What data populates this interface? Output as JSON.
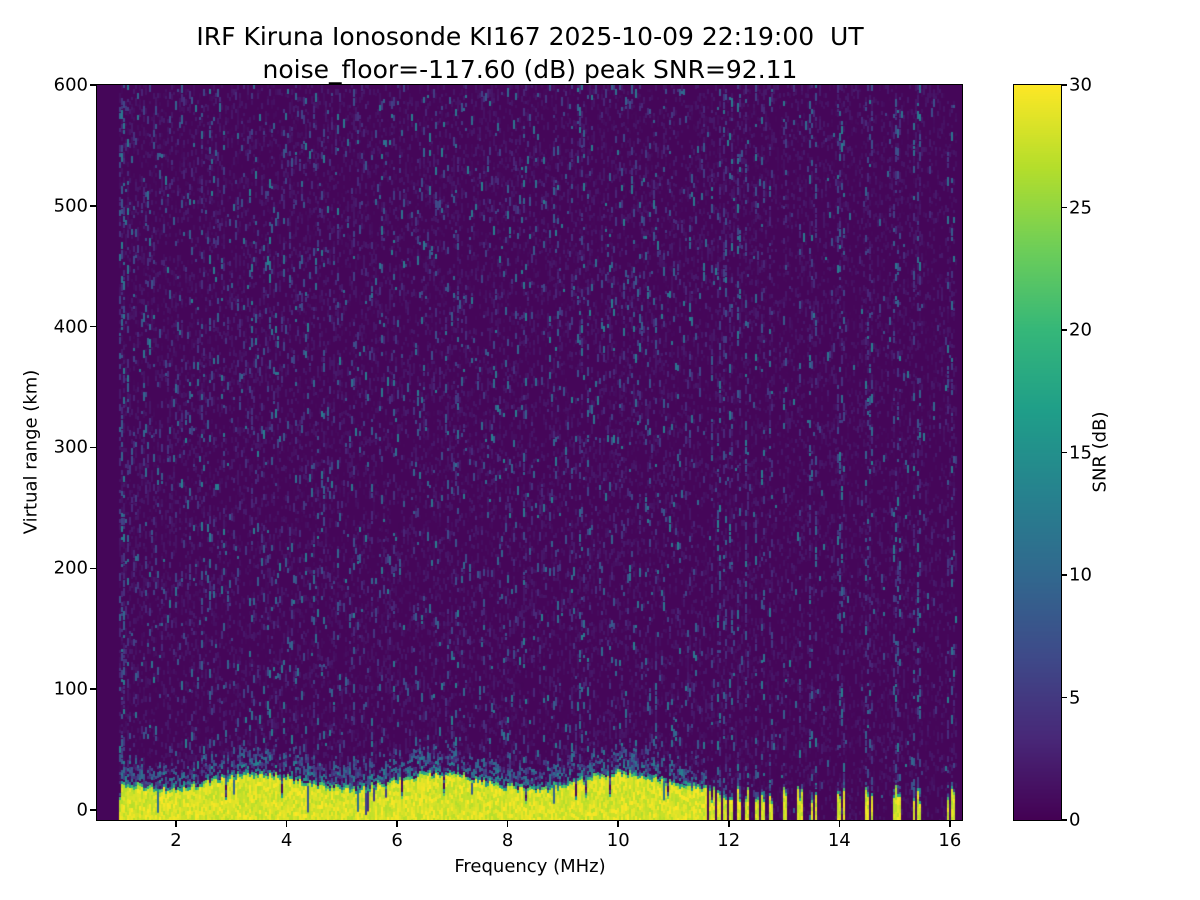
{
  "figure": {
    "background": "#ffffff"
  },
  "chart_data": {
    "type": "heatmap",
    "title": "IRF Kiruna Ionosonde KI167 2025-10-09 22:19:00  UT",
    "subtitle": "noise_floor=-117.60 (dB) peak SNR=92.11",
    "xlabel": "Frequency (MHz)",
    "ylabel": "Virtual range (km)",
    "colorbar_label": "SNR (dB)",
    "xlim": [
      0.57,
      16.22
    ],
    "ylim": [
      -8.3,
      600
    ],
    "clim": [
      0,
      30
    ],
    "xticks": [
      2,
      4,
      6,
      8,
      10,
      12,
      14,
      16
    ],
    "yticks": [
      0,
      100,
      200,
      300,
      400,
      500,
      600
    ],
    "colorbar_ticks": [
      0,
      5,
      10,
      15,
      20,
      25,
      30
    ],
    "colormap": "viridis",
    "viridis_stops": [
      "#440154",
      "#482878",
      "#3e4a89",
      "#31688e",
      "#26828e",
      "#1f9e89",
      "#35b779",
      "#6ece58",
      "#b5de2b",
      "#fde725"
    ],
    "noise_seed": 1337,
    "features": {
      "noise_floor_db": -117.6,
      "peak_snr_db": 92.11,
      "background": "dark viridis floor (~0-2 dB) with sparse blue-teal noise speckles (3-13 dB), denser in 1-11.6 MHz, concentrated in vertical RFI stripes above 11.6 MHz",
      "ground_echo_band": {
        "freq_start_mhz": 0.98,
        "freq_end_mhz": 11.62,
        "top_km_min": 16,
        "top_km_max": 30,
        "snr_db": 30
      },
      "echo_segments_mhz": [
        [
          11.66,
          11.74
        ],
        [
          11.78,
          11.85
        ],
        [
          11.9,
          11.97
        ],
        [
          12.02,
          12.09
        ],
        [
          12.16,
          12.23
        ],
        [
          12.3,
          12.38
        ],
        [
          12.46,
          12.53
        ],
        [
          12.6,
          12.67
        ],
        [
          12.74,
          12.81
        ],
        [
          12.97,
          13.05
        ],
        [
          13.25,
          13.33
        ],
        [
          13.47,
          13.52
        ],
        [
          13.56,
          13.61
        ],
        [
          13.97,
          14.03
        ],
        [
          14.06,
          14.11
        ],
        [
          14.47,
          14.53
        ],
        [
          14.56,
          14.61
        ],
        [
          14.97,
          15.03
        ],
        [
          15.06,
          15.11
        ],
        [
          15.32,
          15.38
        ],
        [
          15.42,
          15.47
        ],
        [
          15.94,
          16.0
        ],
        [
          16.03,
          16.08
        ]
      ],
      "rfi_stripes_mhz": [
        11.7,
        11.81,
        11.93,
        12.05,
        12.19,
        12.34,
        12.49,
        12.63,
        12.77,
        13.01,
        13.29,
        13.5,
        13.58,
        14.0,
        14.08,
        14.5,
        14.58,
        15.0,
        15.08,
        15.35,
        15.44,
        15.97,
        16.05
      ],
      "left_edge_noisy_column_mhz": 1.0
    }
  }
}
